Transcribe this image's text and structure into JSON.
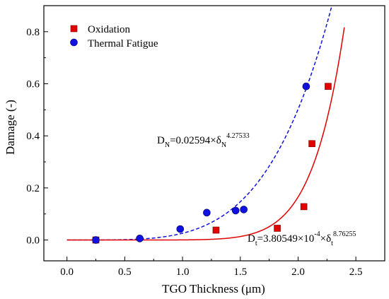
{
  "chart_data": {
    "type": "scatter",
    "title": "",
    "xlabel": "TGO Thickness (μm)",
    "ylabel": "Damage (-)",
    "xlim": [
      -0.2,
      2.75
    ],
    "ylim": [
      -0.08,
      0.9
    ],
    "x_ticks": [
      0.0,
      0.5,
      1.0,
      1.5,
      2.0,
      2.5
    ],
    "x_tick_labels": [
      "0.0",
      "0.5",
      "1.0",
      "1.5",
      "2.0",
      "2.5"
    ],
    "y_ticks": [
      0.0,
      0.2,
      0.4,
      0.6,
      0.8
    ],
    "y_tick_labels": [
      "0.0",
      "0.2",
      "0.4",
      "0.6",
      "0.8"
    ],
    "grid": false,
    "legend_position": "top-left",
    "series": [
      {
        "name": "Oxidation",
        "marker": "square",
        "color": "#e00000",
        "points": [
          {
            "x": 0.25,
            "y": 0.0
          },
          {
            "x": 1.29,
            "y": 0.038
          },
          {
            "x": 1.82,
            "y": 0.045
          },
          {
            "x": 2.05,
            "y": 0.128
          },
          {
            "x": 2.12,
            "y": 0.37
          },
          {
            "x": 2.26,
            "y": 0.59
          }
        ]
      },
      {
        "name": "Thermal Fatigue",
        "marker": "circle",
        "color": "#1010e0",
        "points": [
          {
            "x": 0.25,
            "y": 0.0
          },
          {
            "x": 0.63,
            "y": 0.006
          },
          {
            "x": 0.98,
            "y": 0.042
          },
          {
            "x": 1.21,
            "y": 0.105
          },
          {
            "x": 1.46,
            "y": 0.113
          },
          {
            "x": 1.53,
            "y": 0.117
          },
          {
            "x": 2.07,
            "y": 0.59
          }
        ]
      }
    ],
    "fits": [
      {
        "series": "Thermal Fatigue",
        "style": "dashed",
        "color": "#1010e0",
        "coefficient": 0.02594,
        "exponent": 4.27533,
        "x_range": [
          0.0,
          2.4
        ]
      },
      {
        "series": "Oxidation",
        "style": "solid",
        "color": "#e00000",
        "coefficient": 0.000380549,
        "exponent": 8.76255,
        "x_range": [
          0.0,
          2.4
        ]
      }
    ],
    "annotations": {
      "fit_n": {
        "lhs_main": "D",
        "lhs_sub": "N",
        "eq": "=0.02594×δ",
        "var_sub": "N",
        "exponent": "4.27533"
      },
      "fit_t": {
        "lhs_main": "D",
        "lhs_sub": "t",
        "eq": "=3.80549×10",
        "pow": "-4",
        "times": "×δ",
        "var_sub": "t",
        "exponent": "8.76255"
      }
    }
  }
}
